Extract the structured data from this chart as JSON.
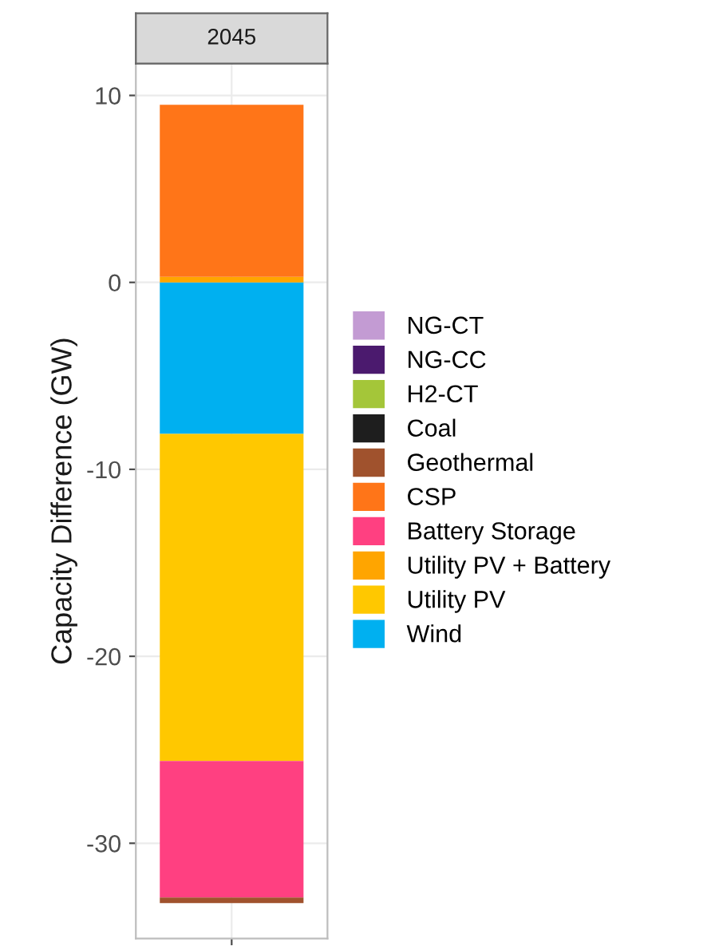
{
  "chart_data": {
    "type": "bar",
    "stacked": true,
    "title": "2045",
    "ylabel": "Capacity Difference (GW)",
    "categories": [
      null
    ],
    "series": [
      {
        "name": "Wind",
        "color": "#00b0f0",
        "values": [
          -8.1
        ]
      },
      {
        "name": "Utility PV",
        "color": "#ffc800",
        "values": [
          -17.5
        ]
      },
      {
        "name": "Utility PV + Battery",
        "color": "#ffa500",
        "values": [
          0.3
        ]
      },
      {
        "name": "Battery Storage",
        "color": "#ff4081",
        "values": [
          -7.3
        ]
      },
      {
        "name": "CSP",
        "color": "#ff7518",
        "values": [
          9.2
        ]
      },
      {
        "name": "Geothermal",
        "color": "#a0522d",
        "values": [
          -0.3
        ]
      },
      {
        "name": "Coal",
        "color": "#1e1e1e",
        "values": [
          0
        ]
      },
      {
        "name": "H2-CT",
        "color": "#a4c639",
        "values": [
          0
        ]
      },
      {
        "name": "NG-CC",
        "color": "#4b1a6e",
        "values": [
          0
        ]
      },
      {
        "name": "NG-CT",
        "color": "#c39bd3",
        "values": [
          0
        ]
      }
    ],
    "ylim": [
      -35.1,
      11.7
    ],
    "yticks": [
      -30,
      -20,
      -10,
      0,
      10
    ],
    "grid": true,
    "legend": "right"
  }
}
